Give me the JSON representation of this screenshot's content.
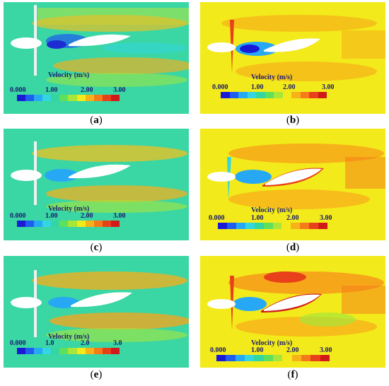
{
  "panels": [
    {
      "id": "a",
      "caption_letter": "a",
      "legend_title": "Velocity (m/s)",
      "ticks": [
        "0.000",
        "1.00",
        "2.00",
        "3.00"
      ],
      "background": "#33d6a0"
    },
    {
      "id": "b",
      "caption_letter": "b",
      "legend_title": "Velocity (m/s)",
      "ticks": [
        "0.000",
        "1.00",
        "2.00",
        "3.00"
      ],
      "background": "#f2ea1a"
    },
    {
      "id": "c",
      "caption_letter": "c",
      "legend_title": "Velocity (m/s)",
      "ticks": [
        "0.000",
        "1.00",
        "2.00",
        "3.00"
      ],
      "background": "#33d6a0"
    },
    {
      "id": "d",
      "caption_letter": "d",
      "legend_title": "Velocity (m/s)",
      "ticks": [
        "0.000",
        "1.00",
        "2.00",
        "3.00"
      ],
      "background": "#f2ea1a"
    },
    {
      "id": "e",
      "caption_letter": "e",
      "legend_title": "Velocity (m/s)",
      "ticks": [
        "0.000",
        "1.0",
        "2.0",
        "3.0"
      ],
      "background": "#33d6a0"
    },
    {
      "id": "f",
      "caption_letter": "f",
      "legend_title": "Velocity (m/s)",
      "ticks": [
        "0.000",
        "1.00",
        "2.00",
        "3.00"
      ],
      "background": "#f2ea1a"
    }
  ],
  "colormap": [
    "#1a1ad6",
    "#1f5cf0",
    "#27a8f5",
    "#33d6e0",
    "#33d6a0",
    "#5ee05c",
    "#a8e63a",
    "#f2ea1a",
    "#f7b21a",
    "#f57a1a",
    "#e8401a",
    "#d01a1a"
  ]
}
